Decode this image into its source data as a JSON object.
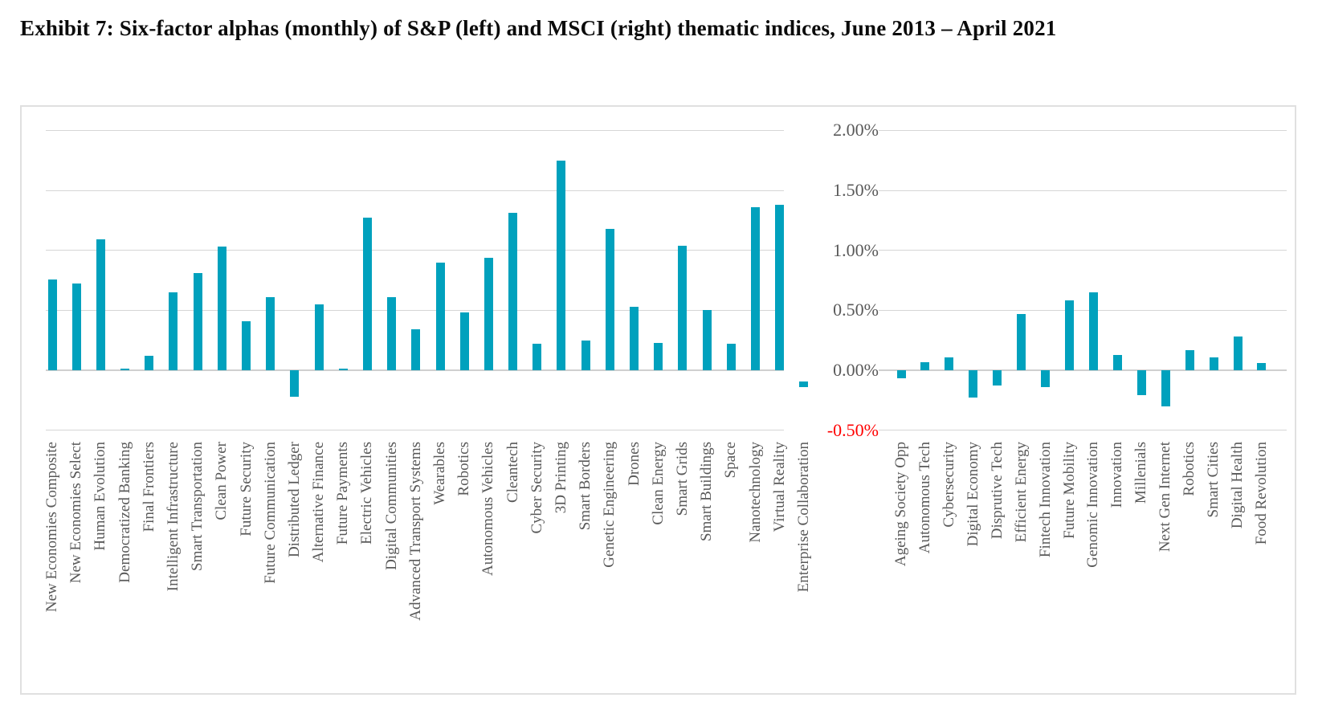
{
  "title": "Exhibit 7: Six-factor alphas (monthly) of S&P (left) and MSCI (right) thematic indices, June 2013 – April 2021",
  "colors": {
    "bar": "#00a1bd",
    "grid": "#d6d6d6",
    "axis_text": "#595959",
    "negative_tick": "#ff0000",
    "chart_border": "#e0e0e0",
    "title_text": "#0b0b0b"
  },
  "chart_data": {
    "type": "bar",
    "title": "Exhibit 7: Six-factor alphas (monthly) of S&P (left) and MSCI (right) thematic indices, June 2013 – April 2021",
    "xlabel": "",
    "ylabel": "",
    "unit": "%",
    "ylim": [
      -0.5,
      2.0
    ],
    "grid": true,
    "legend_position": "none",
    "y_ticks": [
      {
        "label": "2.00%",
        "value": 2.0
      },
      {
        "label": "1.50%",
        "value": 1.5
      },
      {
        "label": "1.00%",
        "value": 1.0
      },
      {
        "label": "0.50%",
        "value": 0.5
      },
      {
        "label": "0.00%",
        "value": 0.0
      },
      {
        "label": "-0.50%",
        "value": -0.5
      }
    ],
    "series": [
      {
        "name": "S&P thematic indices (left)",
        "categories": [
          "New Economies Composite",
          "New Economies Select",
          "Human Evolution",
          "Democratized Banking",
          "Final Frontiers",
          "Intelligent Infrastructure",
          "Smart Transportation",
          "Clean Power",
          "Future Security",
          "Future Communication",
          "Distributed Ledger",
          "Alternative Finance",
          "Future Payments",
          "Electric Vehicles",
          "Digital Communities",
          "Advanced Transport Systems",
          "Wearables",
          "Robotics",
          "Autonomous Vehicles",
          "Cleantech",
          "Cyber Security",
          "3D Printing",
          "Smart Borders",
          "Genetic Engineering",
          "Drones",
          "Clean Energy",
          "Smart Grids",
          "Smart Buildings",
          "Space",
          "Nanotechnology",
          "Virtual Reality",
          "Enterprise Collaboration"
        ],
        "values": [
          0.76,
          0.72,
          1.09,
          0.01,
          0.12,
          0.65,
          0.81,
          1.03,
          0.41,
          0.61,
          -0.22,
          0.55,
          0.01,
          1.27,
          0.61,
          0.34,
          0.9,
          0.48,
          0.94,
          1.31,
          0.22,
          1.75,
          0.25,
          1.18,
          0.53,
          0.23,
          1.04,
          0.5,
          0.22,
          1.36,
          1.38,
          -0.14
        ]
      },
      {
        "name": "MSCI thematic indices (right)",
        "categories": [
          "Ageing Society Opp",
          "Autonomous Tech",
          "Cybersecurity",
          "Digital Economy",
          "Disprutive Tech",
          "Efficient Energy",
          "Fintech Innovation",
          "Future Mobility",
          "Genomic Innovation",
          "Innovation",
          "Millenials",
          "Next Gen Internet",
          "Robotics",
          "Smart Cities",
          "Digital Health",
          "Food Revolution"
        ],
        "values": [
          -0.07,
          0.07,
          0.11,
          -0.23,
          -0.13,
          0.47,
          -0.14,
          0.58,
          0.65,
          0.13,
          -0.21,
          -0.3,
          0.17,
          0.11,
          0.28,
          0.06
        ]
      }
    ]
  }
}
